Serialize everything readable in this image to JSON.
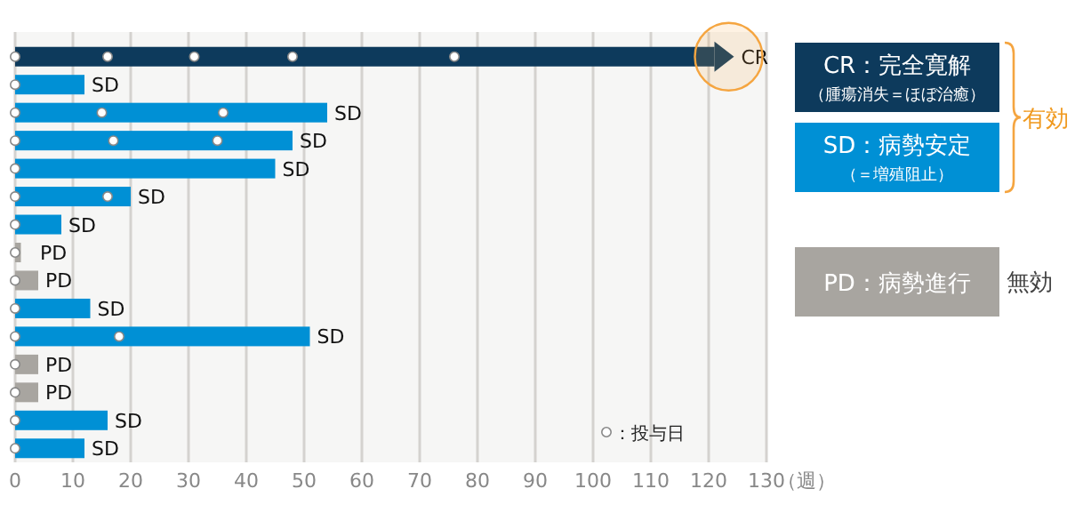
{
  "chart_data": {
    "type": "bar",
    "orientation": "horizontal",
    "xlabel": "（週）",
    "categories": [
      null,
      null,
      null,
      null,
      null,
      null,
      null,
      null,
      null,
      null,
      null,
      null,
      null,
      null,
      null
    ],
    "series": [
      {
        "name": "CR：完全寛解（腫瘍消失＝ほぼ治癒）",
        "color": "#0d3a5c",
        "values": [
          121,
          null,
          null,
          null,
          null,
          null,
          null,
          null,
          null,
          null,
          null,
          null,
          null,
          null,
          null
        ],
        "value_labels": [
          "CR",
          null,
          null,
          null,
          null,
          null,
          null,
          null,
          null,
          null,
          null,
          null,
          null,
          null,
          null
        ]
      },
      {
        "name": "SD：病勢安定（＝増殖阻止）",
        "color": "#0090d5",
        "values": [
          null,
          12,
          54,
          48,
          45,
          20,
          8,
          null,
          null,
          13,
          51,
          null,
          null,
          16,
          12
        ],
        "value_labels": [
          null,
          "SD",
          "SD",
          "SD",
          "SD",
          "SD",
          "SD",
          null,
          null,
          "SD",
          "SD",
          null,
          null,
          "SD",
          "SD"
        ]
      },
      {
        "name": "PD：病勢進行",
        "color": "#a8a5a0",
        "values": [
          null,
          null,
          null,
          null,
          null,
          null,
          null,
          1,
          4,
          null,
          null,
          4,
          4,
          null,
          null
        ],
        "value_labels": [
          null,
          null,
          null,
          null,
          null,
          null,
          null,
          "PD",
          "PD",
          null,
          null,
          "PD",
          "PD",
          null,
          null
        ]
      },
      {
        "name": "：投与日",
        "type": "scatter",
        "color": "#ffffff",
        "marker": "circle",
        "values": [
          0,
          0,
          0,
          0,
          0,
          0,
          0,
          0,
          0,
          0,
          0,
          0,
          0,
          0,
          0
        ]
      },
      {
        "type": "scatter",
        "color": "#ffffff",
        "marker": "circle",
        "values": [
          16,
          null,
          15,
          17,
          null,
          16,
          null,
          null,
          null,
          null,
          18,
          null,
          null,
          null,
          null
        ]
      },
      {
        "type": "scatter",
        "color": "#ffffff",
        "marker": "circle",
        "values": [
          31,
          null,
          36,
          35,
          null,
          null,
          null,
          null,
          null,
          null,
          null,
          null,
          null,
          null,
          null
        ]
      },
      {
        "type": "scatter",
        "color": "#ffffff",
        "marker": "circle",
        "values": [
          48,
          null,
          null,
          null,
          null,
          null,
          null,
          null,
          null,
          null,
          null,
          null,
          null,
          null,
          null
        ]
      },
      {
        "type": "scatter",
        "color": "#ffffff",
        "marker": "circle",
        "values": [
          76,
          null,
          null,
          null,
          null,
          null,
          null,
          null,
          null,
          null,
          null,
          null,
          null,
          null,
          null
        ]
      }
    ],
    "annotations": [
      "有効",
      "無効"
    ],
    "xlim": [
      0,
      130
    ],
    "xticks": [
      0,
      10,
      20,
      30,
      40,
      50,
      60,
      70,
      80,
      90,
      100,
      110,
      120,
      130
    ],
    "grid": "x",
    "legend": "right"
  }
}
